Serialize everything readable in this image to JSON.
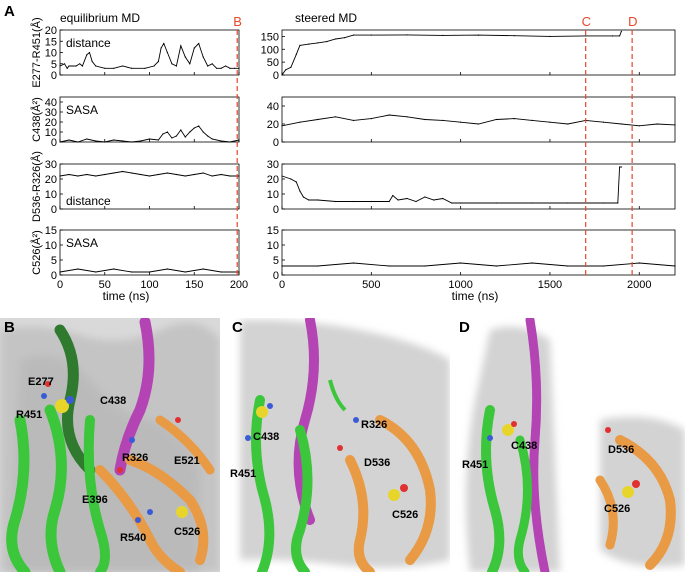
{
  "panels": {
    "A": "A",
    "B": "B",
    "C": "C",
    "D": "D"
  },
  "headers": {
    "left": "equilibrium MD",
    "right": "steered MD"
  },
  "markers": [
    {
      "label": "B",
      "axis": "left",
      "x": 198
    },
    {
      "label": "C",
      "axis": "right",
      "x": 1700
    },
    {
      "label": "D",
      "axis": "right",
      "x": 1960
    }
  ],
  "x_axis": {
    "left": {
      "label": "time   (ns)",
      "range": [
        0,
        200
      ],
      "ticks": [
        0,
        50,
        100,
        150,
        200
      ]
    },
    "right": {
      "label": "time   (ns)",
      "range": [
        0,
        2200
      ],
      "ticks": [
        0,
        500,
        1000,
        1500,
        2000
      ]
    }
  },
  "colors": {
    "marker": "#e8462b",
    "trace": "#000000"
  },
  "chart_data": [
    {
      "type": "line",
      "row": 0,
      "side": "left",
      "ylabel": "E277-R451(Å)",
      "inner_label": "distance",
      "ylim": [
        0,
        20
      ],
      "yticks": [
        0,
        5,
        10,
        15,
        20
      ],
      "xlim": [
        0,
        200
      ],
      "x": [
        0,
        5,
        8,
        10,
        18,
        22,
        25,
        30,
        33,
        36,
        40,
        50,
        60,
        70,
        80,
        95,
        105,
        110,
        113,
        116,
        120,
        125,
        130,
        135,
        140,
        145,
        150,
        155,
        160,
        165,
        170,
        175,
        180,
        185,
        190,
        195,
        200
      ],
      "y": [
        4,
        5,
        3,
        4,
        4,
        5,
        4,
        9,
        10,
        6,
        4,
        3,
        3,
        4,
        3,
        3,
        4,
        6,
        12,
        14,
        10,
        5,
        4,
        13,
        8,
        5,
        12,
        14,
        8,
        4,
        5,
        3,
        3,
        4,
        3,
        3,
        3
      ]
    },
    {
      "type": "line",
      "row": 0,
      "side": "right",
      "ylabel": "",
      "inner_label": "",
      "ylim": [
        0,
        175
      ],
      "yticks": [
        0,
        50,
        100,
        150
      ],
      "xlim": [
        0,
        2200
      ],
      "x": [
        0,
        20,
        50,
        80,
        100,
        150,
        200,
        250,
        300,
        350,
        400,
        500,
        700,
        900,
        1100,
        1300,
        1500,
        1700,
        1850,
        1890,
        1900
      ],
      "y": [
        0,
        20,
        30,
        80,
        115,
        120,
        125,
        130,
        140,
        145,
        155,
        155,
        156,
        154,
        155,
        153,
        150,
        152,
        152,
        152,
        170
      ]
    },
    {
      "type": "line",
      "row": 1,
      "side": "left",
      "ylabel": "C438(Å²)",
      "inner_label": "SASA",
      "ylim": [
        0,
        45
      ],
      "yticks": [
        0,
        10,
        20,
        30,
        40
      ],
      "xlim": [
        0,
        200
      ],
      "x": [
        0,
        10,
        20,
        30,
        40,
        50,
        60,
        70,
        80,
        90,
        100,
        110,
        115,
        120,
        125,
        130,
        135,
        140,
        145,
        150,
        155,
        160,
        165,
        170,
        180,
        190,
        200
      ],
      "y": [
        0,
        2,
        0,
        3,
        1,
        0,
        2,
        1,
        0,
        1,
        3,
        2,
        8,
        10,
        4,
        6,
        12,
        5,
        10,
        14,
        16,
        10,
        6,
        3,
        1,
        0,
        2
      ]
    },
    {
      "type": "line",
      "row": 1,
      "side": "right",
      "ylabel": "",
      "inner_label": "",
      "ylim": [
        0,
        50
      ],
      "yticks": [
        0,
        20,
        40
      ],
      "xlim": [
        0,
        2200
      ],
      "x": [
        0,
        100,
        200,
        300,
        400,
        500,
        600,
        700,
        800,
        900,
        1000,
        1100,
        1200,
        1300,
        1400,
        1500,
        1600,
        1700,
        1800,
        1900,
        2000,
        2100,
        2200
      ],
      "y": [
        18,
        22,
        25,
        28,
        24,
        26,
        30,
        28,
        25,
        24,
        22,
        20,
        25,
        26,
        24,
        22,
        20,
        24,
        22,
        20,
        18,
        20,
        19
      ]
    },
    {
      "type": "line",
      "row": 2,
      "side": "left",
      "ylabel": "D536-R326(Å)",
      "inner_label": "distance",
      "ylim": [
        0,
        30
      ],
      "yticks": [
        0,
        10,
        20,
        30
      ],
      "xlim": [
        0,
        200
      ],
      "x": [
        0,
        10,
        20,
        30,
        40,
        50,
        60,
        70,
        80,
        90,
        100,
        110,
        120,
        130,
        140,
        150,
        160,
        170,
        180,
        190,
        200
      ],
      "y": [
        22,
        23,
        22,
        23,
        22,
        23,
        24,
        25,
        24,
        23,
        22,
        23,
        24,
        23,
        22,
        23,
        24,
        22,
        23,
        22,
        22
      ]
    },
    {
      "type": "line",
      "row": 2,
      "side": "right",
      "ylabel": "",
      "inner_label": "",
      "ylim": [
        0,
        30
      ],
      "yticks": [
        0,
        10,
        20,
        30
      ],
      "xlim": [
        0,
        2200
      ],
      "x": [
        0,
        50,
        80,
        100,
        120,
        150,
        200,
        300,
        400,
        500,
        600,
        620,
        650,
        700,
        750,
        800,
        850,
        900,
        950,
        1000,
        1200,
        1400,
        1600,
        1800,
        1880,
        1890,
        1900
      ],
      "y": [
        22,
        20,
        18,
        12,
        8,
        6,
        6,
        5,
        5,
        5,
        5,
        9,
        6,
        7,
        5,
        8,
        6,
        7,
        4,
        4,
        4,
        4,
        4,
        4,
        4,
        28,
        28
      ]
    },
    {
      "type": "line",
      "row": 3,
      "side": "left",
      "ylabel": "C526(Å²)",
      "inner_label": "SASA",
      "ylim": [
        0,
        15
      ],
      "yticks": [
        0,
        5,
        10,
        15
      ],
      "xlim": [
        0,
        200
      ],
      "x": [
        0,
        20,
        40,
        60,
        80,
        100,
        120,
        140,
        160,
        180,
        200
      ],
      "y": [
        1,
        2,
        1,
        2,
        1,
        1,
        2,
        1,
        2,
        1,
        1
      ]
    },
    {
      "type": "line",
      "row": 3,
      "side": "right",
      "ylabel": "",
      "inner_label": "",
      "ylim": [
        0,
        15
      ],
      "yticks": [
        0,
        5,
        10,
        15
      ],
      "xlim": [
        0,
        2200
      ],
      "x": [
        0,
        200,
        400,
        600,
        800,
        1000,
        1200,
        1400,
        1600,
        1800,
        2000,
        2200
      ],
      "y": [
        3,
        3,
        4,
        3,
        3,
        4,
        3,
        4,
        3,
        3,
        4,
        3
      ]
    }
  ],
  "structures": {
    "B": [
      "E277",
      "R451",
      "C438",
      "R326",
      "E521",
      "E396",
      "R540",
      "C526"
    ],
    "C": [
      "C438",
      "R326",
      "D536",
      "R451",
      "C526"
    ],
    "D": [
      "C438",
      "D536",
      "R451",
      "C526"
    ]
  }
}
